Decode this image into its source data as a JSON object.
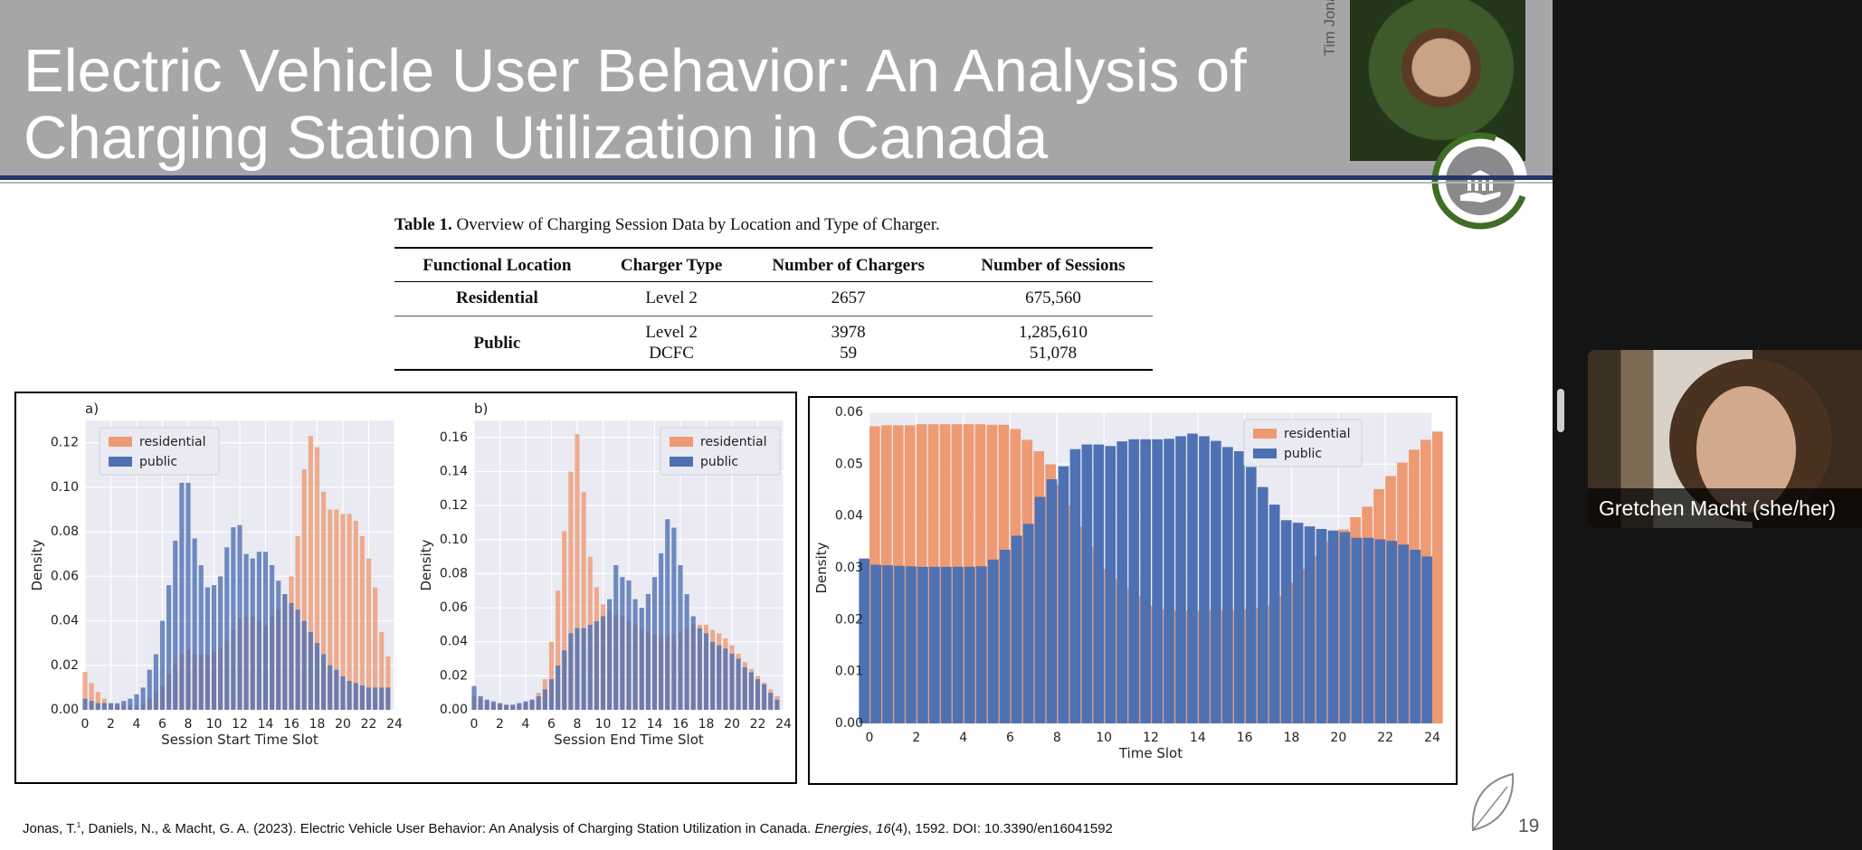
{
  "slide": {
    "title": "Electric Vehicle User Behavior: An Analysis of Charging Station Utilization in Canada",
    "presenter_name": "Tim Jona",
    "page_number": "19",
    "citation": {
      "authors": "Jonas, T.",
      "authors_rest": ", Daniels, N., & Macht, G. A. (2023). Electric Vehicle User Behavior: An Analysis of Charging Station Utilization in Canada. ",
      "journal": "Energies",
      "comma": ", ",
      "volume": "16",
      "rest": "(4), 1592. DOI: 10.3390/en16041592"
    }
  },
  "table": {
    "caption_label": "Table 1.",
    "caption_text": "Overview of Charging Session Data by Location and Type of Charger.",
    "headers": [
      "Functional Location",
      "Charger Type",
      "Number of Chargers",
      "Number of Sessions"
    ],
    "residential": {
      "location": "Residential",
      "type": "Level 2",
      "chargers": "2657",
      "sessions": "675,560"
    },
    "public": {
      "location": "Public",
      "type1": "Level 2",
      "chargers1": "3978",
      "sessions1": "1,285,610",
      "type2": "DCFC",
      "chargers2": "59",
      "sessions2": "51,078"
    }
  },
  "participant": {
    "name": "Gretchen Macht (she/her)"
  },
  "colors": {
    "residential": "#ee9a73",
    "public": "#4e71b3",
    "plot_bg": "#eaeaf2",
    "grid": "#ffffff"
  },
  "chart_data": [
    {
      "type": "bar",
      "panel_label": "a)",
      "xlabel": "Session Start Time Slot",
      "ylabel": "Density",
      "xlim": [
        0,
        24
      ],
      "ylim": [
        0,
        0.13
      ],
      "xticks": [
        0,
        2,
        4,
        6,
        8,
        10,
        12,
        14,
        16,
        18,
        20,
        22,
        24
      ],
      "yticks": [
        0.0,
        0.02,
        0.04,
        0.06,
        0.08,
        0.1,
        0.12
      ],
      "x": [
        0,
        0.5,
        1,
        1.5,
        2,
        2.5,
        3,
        3.5,
        4,
        4.5,
        5,
        5.5,
        6,
        6.5,
        7,
        7.5,
        8,
        8.5,
        9,
        9.5,
        10,
        10.5,
        11,
        11.5,
        12,
        12.5,
        13,
        13.5,
        14,
        14.5,
        15,
        15.5,
        16,
        16.5,
        17,
        17.5,
        18,
        18.5,
        19,
        19.5,
        20,
        20.5,
        21,
        21.5,
        22,
        22.5,
        23,
        23.5
      ],
      "series": [
        {
          "name": "residential",
          "values": [
            0.017,
            0.012,
            0.008,
            0.005,
            0.003,
            0.002,
            0.002,
            0.002,
            0.002,
            0.003,
            0.005,
            0.008,
            0.011,
            0.016,
            0.021,
            0.025,
            0.027,
            0.025,
            0.025,
            0.025,
            0.026,
            0.028,
            0.031,
            0.036,
            0.041,
            0.042,
            0.042,
            0.04,
            0.038,
            0.042,
            0.045,
            0.052,
            0.06,
            0.078,
            0.108,
            0.123,
            0.118,
            0.098,
            0.09,
            0.09,
            0.088,
            0.088,
            0.085,
            0.078,
            0.068,
            0.055,
            0.035,
            0.024
          ]
        },
        {
          "name": "public",
          "values": [
            0.005,
            0.004,
            0.003,
            0.003,
            0.003,
            0.003,
            0.004,
            0.005,
            0.007,
            0.01,
            0.018,
            0.025,
            0.04,
            0.056,
            0.076,
            0.102,
            0.102,
            0.077,
            0.065,
            0.055,
            0.056,
            0.06,
            0.073,
            0.082,
            0.083,
            0.07,
            0.068,
            0.071,
            0.071,
            0.065,
            0.058,
            0.052,
            0.048,
            0.045,
            0.04,
            0.035,
            0.03,
            0.025,
            0.02,
            0.018,
            0.015,
            0.013,
            0.012,
            0.011,
            0.01,
            0.01,
            0.01,
            0.01
          ]
        }
      ]
    },
    {
      "type": "bar",
      "panel_label": "b)",
      "xlabel": "Session End Time Slot",
      "ylabel": "Density",
      "xlim": [
        0,
        24
      ],
      "ylim": [
        0,
        0.17
      ],
      "xticks": [
        0,
        2,
        4,
        6,
        8,
        10,
        12,
        14,
        16,
        18,
        20,
        22,
        24
      ],
      "yticks": [
        0.0,
        0.02,
        0.04,
        0.06,
        0.08,
        0.1,
        0.12,
        0.14,
        0.16
      ],
      "x": [
        0,
        0.5,
        1,
        1.5,
        2,
        2.5,
        3,
        3.5,
        4,
        4.5,
        5,
        5.5,
        6,
        6.5,
        7,
        7.5,
        8,
        8.5,
        9,
        9.5,
        10,
        10.5,
        11,
        11.5,
        12,
        12.5,
        13,
        13.5,
        14,
        14.5,
        15,
        15.5,
        16,
        16.5,
        17,
        17.5,
        18,
        18.5,
        19,
        19.5,
        20,
        20.5,
        21,
        21.5,
        22,
        22.5,
        23,
        23.5
      ],
      "series": [
        {
          "name": "residential",
          "values": [
            0.008,
            0.006,
            0.005,
            0.004,
            0.003,
            0.003,
            0.003,
            0.003,
            0.004,
            0.006,
            0.01,
            0.018,
            0.04,
            0.07,
            0.105,
            0.14,
            0.162,
            0.128,
            0.09,
            0.072,
            0.062,
            0.058,
            0.056,
            0.055,
            0.052,
            0.05,
            0.048,
            0.046,
            0.044,
            0.043,
            0.043,
            0.044,
            0.046,
            0.048,
            0.05,
            0.05,
            0.05,
            0.047,
            0.045,
            0.042,
            0.038,
            0.033,
            0.028,
            0.024,
            0.02,
            0.016,
            0.012,
            0.008
          ]
        },
        {
          "name": "public",
          "values": [
            0.014,
            0.008,
            0.006,
            0.005,
            0.004,
            0.003,
            0.003,
            0.004,
            0.005,
            0.006,
            0.008,
            0.012,
            0.018,
            0.026,
            0.035,
            0.045,
            0.048,
            0.048,
            0.05,
            0.052,
            0.055,
            0.065,
            0.085,
            0.078,
            0.076,
            0.065,
            0.06,
            0.068,
            0.078,
            0.092,
            0.112,
            0.107,
            0.085,
            0.068,
            0.055,
            0.048,
            0.045,
            0.04,
            0.038,
            0.036,
            0.033,
            0.03,
            0.025,
            0.022,
            0.018,
            0.015,
            0.01,
            0.006
          ]
        }
      ]
    },
    {
      "type": "bar",
      "panel_label": "",
      "xlabel": "Time Slot",
      "ylabel": "Density",
      "xlim": [
        0,
        24
      ],
      "ylim": [
        0,
        0.06
      ],
      "xticks": [
        0,
        2,
        4,
        6,
        8,
        10,
        12,
        14,
        16,
        18,
        20,
        22,
        24
      ],
      "yticks": [
        0.0,
        0.01,
        0.02,
        0.03,
        0.04,
        0.05,
        0.06
      ],
      "x": [
        0,
        0.5,
        1,
        1.5,
        2,
        2.5,
        3,
        3.5,
        4,
        4.5,
        5,
        5.5,
        6,
        6.5,
        7,
        7.5,
        8,
        8.5,
        9,
        9.5,
        10,
        10.5,
        11,
        11.5,
        12,
        12.5,
        13,
        13.5,
        14,
        14.5,
        15,
        15.5,
        16,
        16.5,
        17,
        17.5,
        18,
        18.5,
        19,
        19.5,
        20,
        20.5,
        21,
        21.5,
        22,
        22.5,
        23,
        23.5,
        24
      ],
      "series": [
        {
          "name": "residential",
          "values": [
            0.0573,
            0.0575,
            0.0575,
            0.0575,
            0.0577,
            0.0577,
            0.0577,
            0.0577,
            0.0577,
            0.0577,
            0.0576,
            0.0576,
            0.0568,
            0.0547,
            0.0525,
            0.05,
            0.046,
            0.042,
            0.038,
            0.034,
            0.0298,
            0.0278,
            0.0262,
            0.0245,
            0.0227,
            0.022,
            0.0218,
            0.0218,
            0.0218,
            0.0218,
            0.0218,
            0.0218,
            0.022,
            0.0222,
            0.0228,
            0.0245,
            0.0272,
            0.0298,
            0.0322,
            0.035,
            0.0374,
            0.0398,
            0.0418,
            0.0452,
            0.0477,
            0.0503,
            0.0528,
            0.0547,
            0.0563
          ]
        },
        {
          "name": "public",
          "values": [
            0.0318,
            0.0306,
            0.0305,
            0.0304,
            0.0303,
            0.0302,
            0.0302,
            0.0302,
            0.0302,
            0.0302,
            0.0303,
            0.0316,
            0.0335,
            0.0362,
            0.0385,
            0.0437,
            0.0471,
            0.0496,
            0.0529,
            0.0538,
            0.0538,
            0.0535,
            0.0544,
            0.0548,
            0.0548,
            0.0548,
            0.0549,
            0.0554,
            0.0559,
            0.0554,
            0.0545,
            0.0533,
            0.0525,
            0.0498,
            0.0456,
            0.0422,
            0.0392,
            0.0387,
            0.038,
            0.0375,
            0.0372,
            0.0369,
            0.0358,
            0.0358,
            0.0355,
            0.0352,
            0.0345,
            0.0335,
            0.0322
          ]
        }
      ]
    }
  ]
}
